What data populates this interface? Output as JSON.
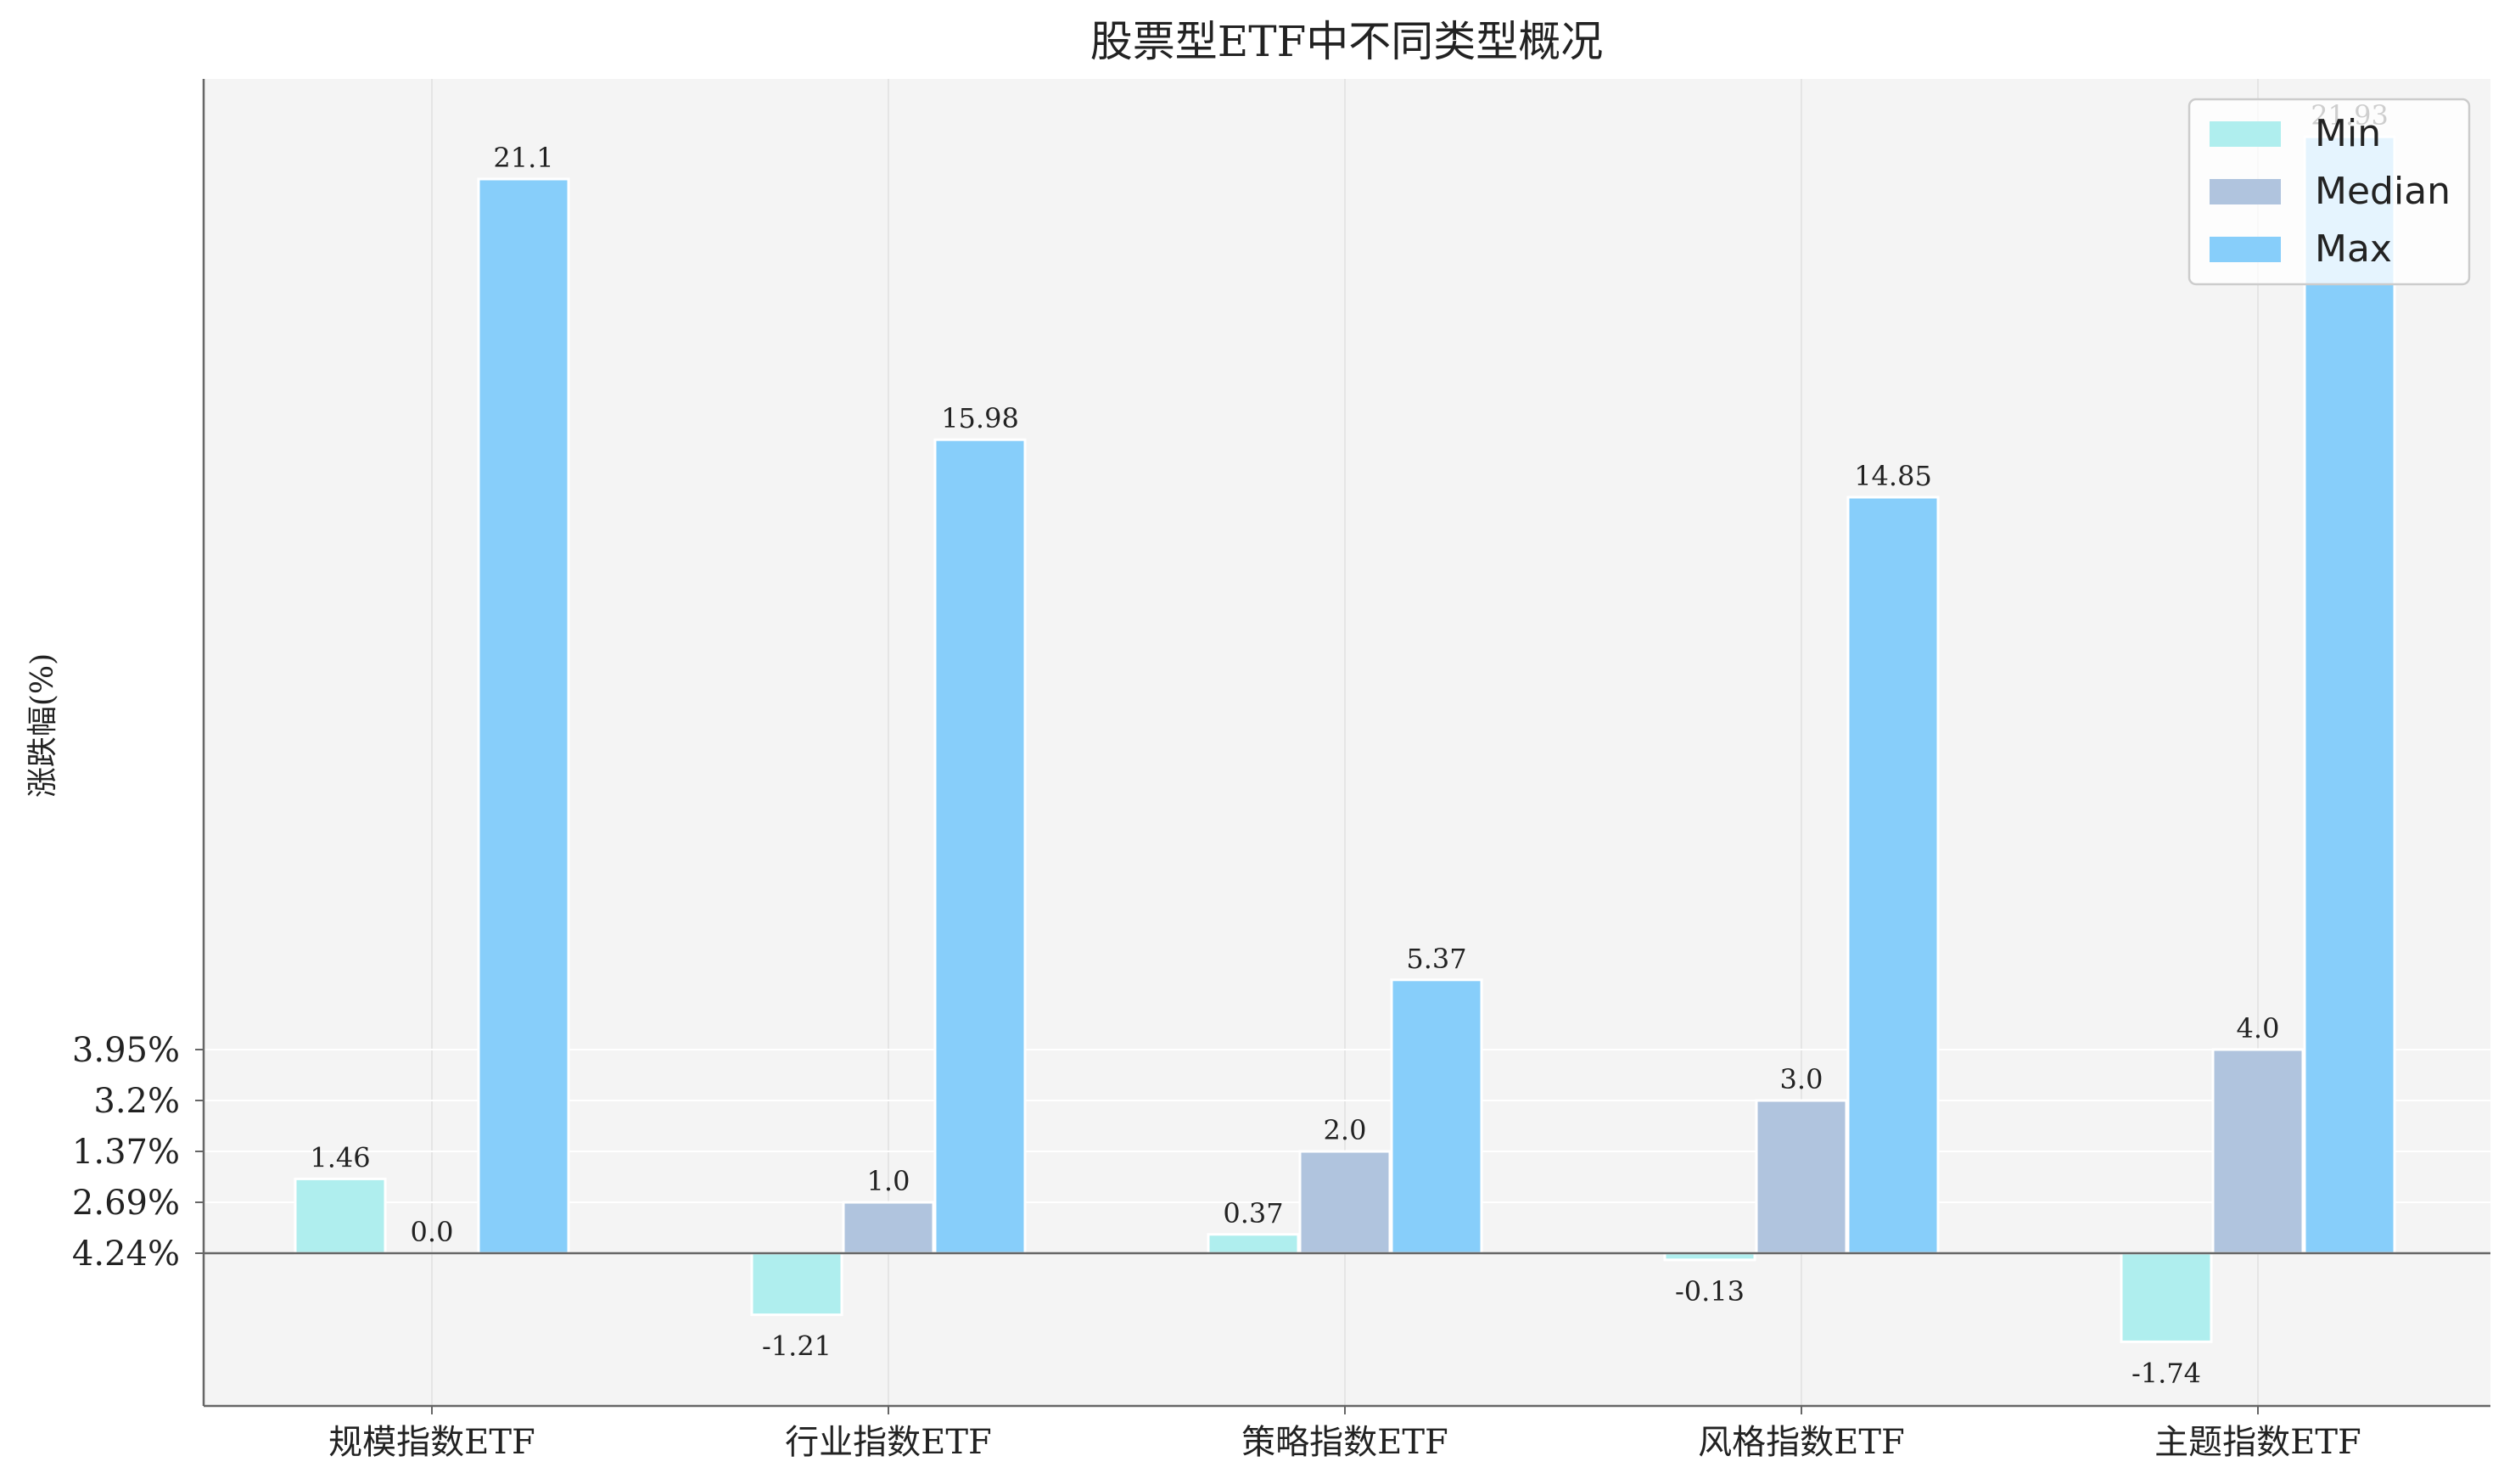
{
  "chart_data": {
    "type": "bar",
    "title": "股票型ETF中不同类型概况",
    "xlabel": "",
    "ylabel": "涨跌幅(%)",
    "categories": [
      "规模指数ETF",
      "行业指数ETF",
      "策略指数ETF",
      "风格指数ETF",
      "主题指数ETF"
    ],
    "series": [
      {
        "name": "Min",
        "values": [
          1.46,
          -1.21,
          0.37,
          -0.13,
          -1.74
        ],
        "labels": [
          "1.46",
          "-1.21",
          "0.37",
          "-0.13",
          "-1.74"
        ],
        "color": "#afeeee"
      },
      {
        "name": "Median",
        "values": [
          0.0,
          1.0,
          2.0,
          3.0,
          4.0
        ],
        "labels": [
          "0.0",
          "1.0",
          "2.0",
          "3.0",
          "4.0"
        ],
        "color": "#b0c4de"
      },
      {
        "name": "Max",
        "values": [
          21.1,
          15.98,
          5.37,
          14.85,
          21.93
        ],
        "labels": [
          "21.1",
          "15.98",
          "5.37",
          "14.85",
          "21.93"
        ],
        "color": "#87cefa"
      }
    ],
    "yticks": [
      {
        "value": 0,
        "label": "4.24%"
      },
      {
        "value": 1,
        "label": "2.69%"
      },
      {
        "value": 2,
        "label": "1.37%"
      },
      {
        "value": 3,
        "label": "3.2%"
      },
      {
        "value": 4,
        "label": "3.95%"
      }
    ],
    "ylim": [
      -3.0,
      23.0
    ],
    "grid": true,
    "legend_position": "top-right",
    "colors": {
      "plot_background": "#f4f4f4",
      "grid": "#ffffff",
      "vertical_grid": "#e5e5e5",
      "axis": "#666666",
      "text": "#222222"
    }
  }
}
